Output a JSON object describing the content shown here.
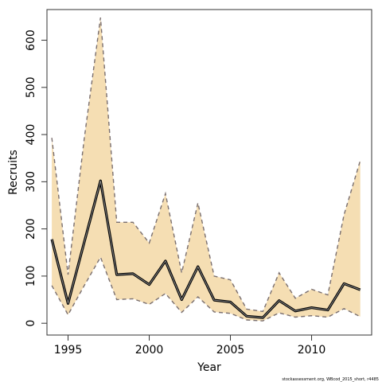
{
  "chart_data": {
    "type": "line",
    "xlabel": "Year",
    "ylabel": "Recruits",
    "xlim": [
      1993.7,
      2013.7
    ],
    "ylim": [
      -25,
      665
    ],
    "x_ticks": [
      1995,
      2000,
      2005,
      2010
    ],
    "y_ticks": [
      0,
      100,
      200,
      300,
      400,
      500,
      600
    ],
    "x": [
      1994,
      1995,
      1996,
      1997,
      1998,
      1999,
      2000,
      2001,
      2002,
      2003,
      2004,
      2005,
      2006,
      2007,
      2008,
      2009,
      2010,
      2011,
      2012,
      2013
    ],
    "series": [
      {
        "role": "estimate",
        "values": [
          178,
          42,
          172,
          302,
          103,
          105,
          82,
          132,
          50,
          120,
          49,
          45,
          15,
          12,
          48,
          26,
          33,
          28,
          84,
          71
        ]
      },
      {
        "role": "upper",
        "values": [
          393,
          103,
          392,
          648,
          214,
          214,
          170,
          275,
          107,
          255,
          100,
          92,
          30,
          25,
          107,
          53,
          72,
          60,
          230,
          345
        ]
      },
      {
        "role": "lower",
        "values": [
          80,
          18,
          80,
          140,
          50,
          52,
          40,
          63,
          23,
          56,
          24,
          21,
          7,
          5,
          22,
          13,
          16,
          13,
          31,
          14
        ]
      }
    ],
    "grid": false,
    "colors": {
      "band": "#f5deb3",
      "line": "#3a3a3a",
      "bound": "#7a6f6f",
      "frame": "#333333"
    }
  },
  "credit": "stockassessment.org, WBcod_2015_short, r4485"
}
